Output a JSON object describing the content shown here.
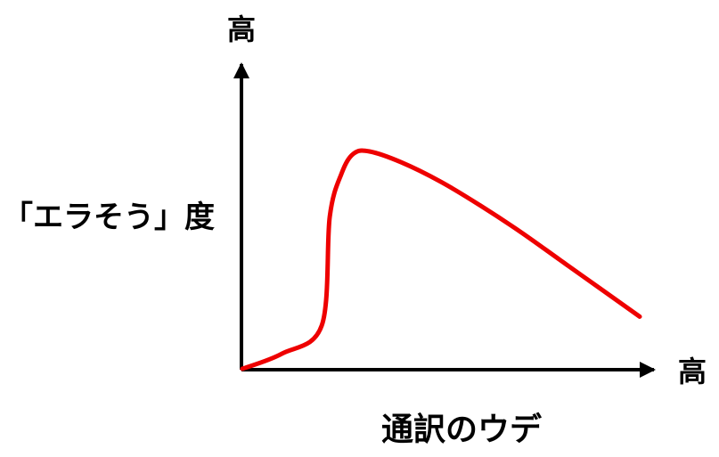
{
  "chart_data": {
    "type": "line",
    "title": "",
    "xlabel": "通訳のウデ",
    "ylabel": "「エラそう」度",
    "x_end_label": "高",
    "y_end_label": "高",
    "xlim": [
      0,
      100
    ],
    "ylim": [
      0,
      100
    ],
    "grid": false,
    "legend": "none",
    "colors": {
      "curve": "#ee0000",
      "axes": "#000000"
    },
    "series": [
      {
        "x": [
          0,
          10,
          20,
          22,
          25,
          28,
          32,
          40,
          50,
          60,
          70,
          80,
          90,
          100
        ],
        "y": [
          0,
          7,
          20,
          70,
          90,
          99,
          100,
          95,
          86,
          75,
          63,
          50,
          37,
          24
        ]
      }
    ]
  }
}
